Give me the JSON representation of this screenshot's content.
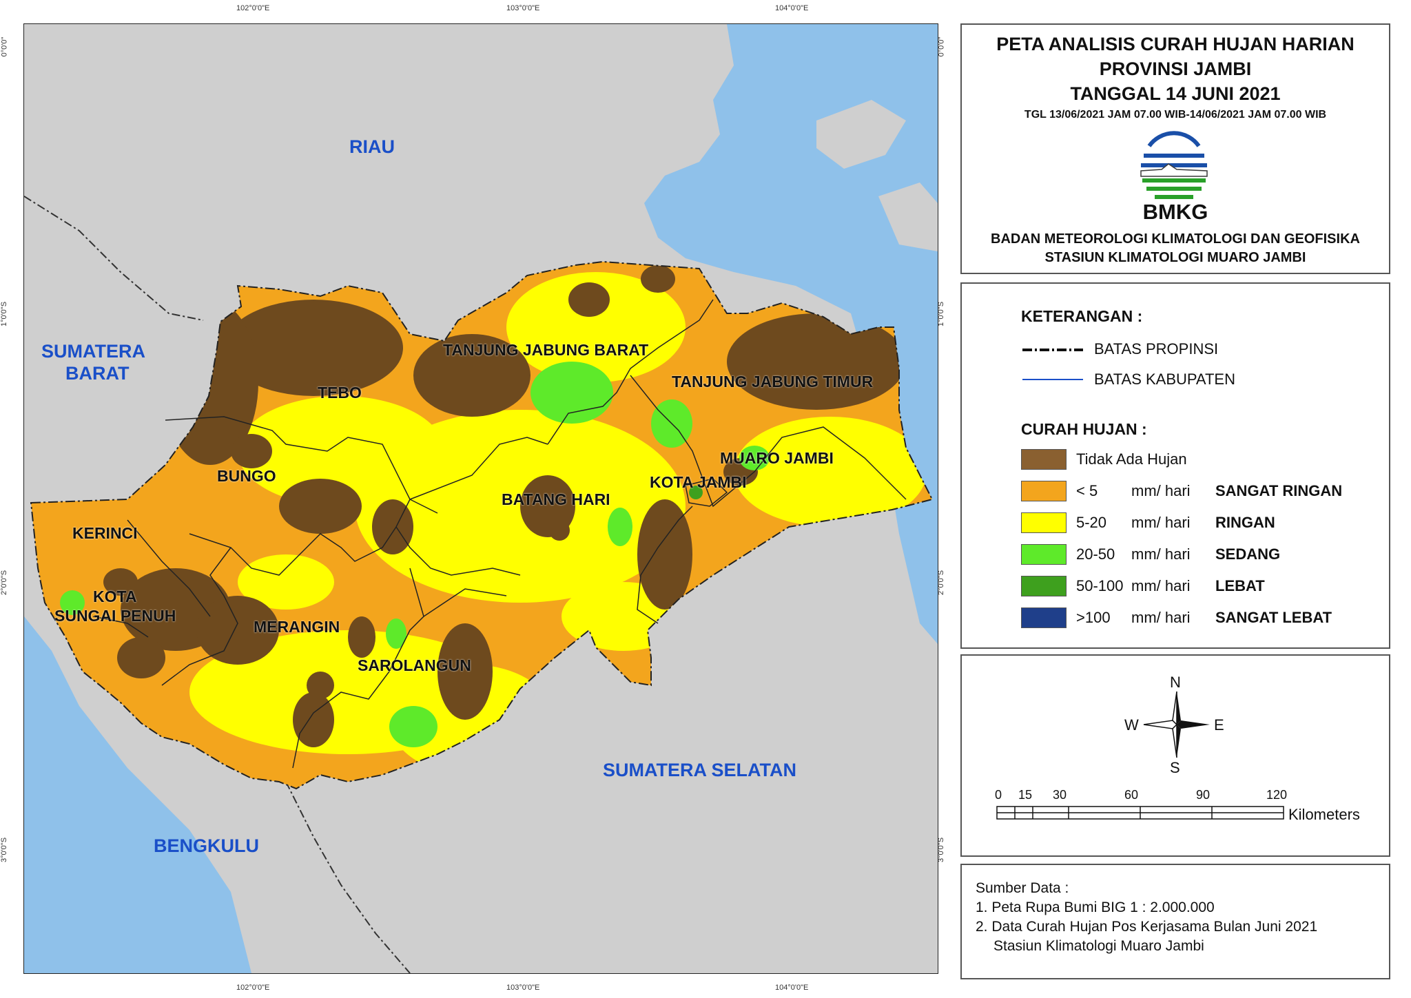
{
  "map": {
    "coords": {
      "top": [
        "102°0'0\"E",
        "103°0'0\"E",
        "104°0'0\"E"
      ],
      "bottom": [
        "102°0'0\"E",
        "103°0'0\"E",
        "104°0'0\"E"
      ],
      "left": [
        "0°0'0\"",
        "1°0'0\"S",
        "2°0'0\"S",
        "3°0'0\"S"
      ],
      "right": [
        "0°0'0\"",
        "1°0'0\"S",
        "2°0'0\"S",
        "3°0'0\"S"
      ]
    },
    "regions": {
      "riau": "RIAU",
      "sumbar_1": "SUMATERA",
      "sumbar_2": "BARAT",
      "sumsel": "SUMATERA SELATAN",
      "bengkulu": "BENGKULU"
    },
    "kabupaten": {
      "tanjabbar": "TANJUNG JABUNG BARAT",
      "tanjabtim": "TANJUNG JABUNG TIMUR",
      "tebo": "TEBO",
      "bungo": "BUNGO",
      "muaro_jambi": "MUARO JAMBI",
      "kota_jambi": "KOTA JAMBI",
      "batang_hari": "BATANG HARI",
      "kerinci": "KERINCI",
      "sungai_penuh_1": "KOTA",
      "sungai_penuh_2": "SUNGAI PENUH",
      "merangin": "MERANGIN",
      "sarolangun": "SAROLANGUN"
    },
    "colors": {
      "sea": "#8fc1ea",
      "land": "#cfcfcf",
      "tidak_ada_hujan": "#6e4a1e",
      "sangat_ringan": "#f3a51d",
      "ringan": "#ffff00",
      "sedang": "#5eea2a",
      "lebat": "#3ea01e",
      "sangat_lebat": "#1f3f8a",
      "boundary_kab": "#222222"
    }
  },
  "title": {
    "line1": "PETA ANALISIS CURAH HUJAN HARIAN",
    "line2": "PROVINSI JAMBI",
    "line3": "TANGGAL 14 JUNI 2021",
    "period": "TGL 13/06/2021 JAM 07.00 WIB-14/06/2021 JAM 07.00 WIB",
    "logo_text": "BMKG",
    "agency": "BADAN METEOROLOGI KLIMATOLOGI DAN GEOFISIKA",
    "station": "STASIUN KLIMATOLOGI MUARO JAMBI"
  },
  "legend": {
    "header": "KETERANGAN :",
    "batas_propinsi": "BATAS PROPINSI",
    "batas_kabupaten": "BATAS KABUPATEN",
    "curah_header": "CURAH HUJAN :",
    "items": [
      {
        "range": "Tidak Ada Hujan",
        "unit": "",
        "category": "",
        "color": "#8a6030"
      },
      {
        "range": "< 5",
        "unit": "mm/ hari",
        "category": "SANGAT RINGAN",
        "color": "#f3a51d"
      },
      {
        "range": "5-20",
        "unit": "mm/ hari",
        "category": "RINGAN",
        "color": "#ffff00"
      },
      {
        "range": "20-50",
        "unit": "mm/ hari",
        "category": "SEDANG",
        "color": "#5eea2a"
      },
      {
        "range": "50-100",
        "unit": "mm/ hari",
        "category": "LEBAT",
        "color": "#3ea01e"
      },
      {
        "range": ">100",
        "unit": "mm/ hari",
        "category": "SANGAT LEBAT",
        "color": "#1f3f8a"
      }
    ]
  },
  "compass": {
    "n": "N",
    "s": "S",
    "e": "E",
    "w": "W"
  },
  "scale": {
    "ticks": [
      "0",
      "15",
      "30",
      "60",
      "90",
      "120"
    ],
    "unit": "Kilometers"
  },
  "source": {
    "header": "Sumber Data :",
    "line1": "1. Peta Rupa Bumi BIG 1 : 2.000.000",
    "line2": "2. Data Curah Hujan Pos Kerjasama Bulan Juni 2021",
    "line3": "Stasiun Klimatologi Muaro Jambi"
  }
}
